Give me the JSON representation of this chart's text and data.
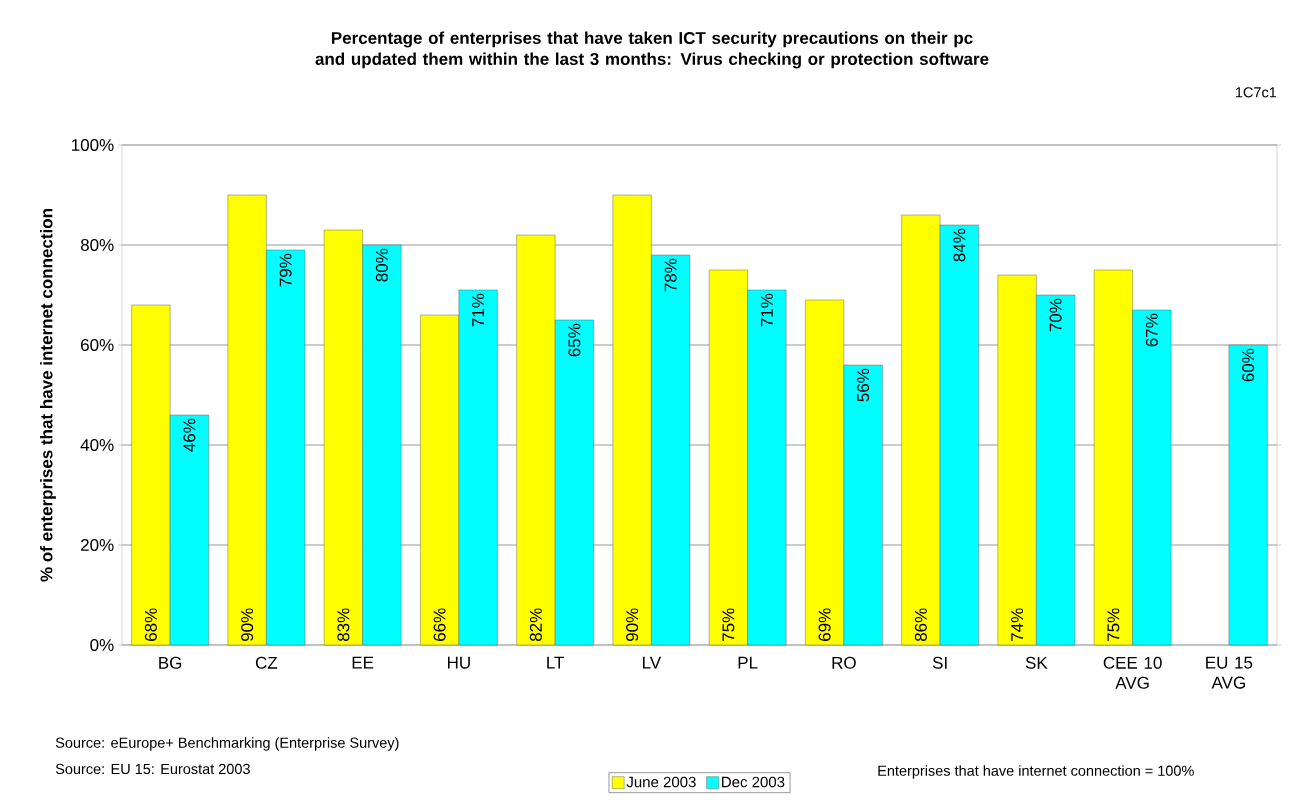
{
  "chart_data": {
    "type": "bar",
    "title": "Percentage of enterprises that have taken ICT security precautions on their pc and updated them within the last 3 months: Virus checking or protection software",
    "ylabel": "% of enterprises that have internet connection",
    "categories": [
      "BG",
      "CZ",
      "EE",
      "HU",
      "LT",
      "LV",
      "PL",
      "RO",
      "SI",
      "SK",
      "CEE 10 AVG",
      "EU 15 AVG"
    ],
    "series": [
      {
        "name": "June 2003",
        "color": "#ffff00",
        "values": [
          68,
          90,
          83,
          66,
          82,
          90,
          75,
          69,
          86,
          74,
          75,
          null
        ],
        "value_labels": [
          "68%",
          "90%",
          "83%",
          "66%",
          "82%",
          "90%",
          "75%",
          "69%",
          "86%",
          "74%",
          "75%",
          null
        ]
      },
      {
        "name": "Dec 2003",
        "color": "#00ffff",
        "values": [
          46,
          79,
          80,
          71,
          65,
          78,
          71,
          56,
          84,
          70,
          67,
          60
        ],
        "value_labels": [
          "46%",
          "79%",
          "80%",
          "71%",
          "65%",
          "78%",
          "71%",
          "56%",
          "84%",
          "70%",
          "67%",
          "60%"
        ]
      }
    ],
    "ylim": [
      0,
      100
    ],
    "yticks": [
      {
        "value": 0,
        "label": "0%"
      },
      {
        "value": 20,
        "label": "20%"
      },
      {
        "value": 40,
        "label": "40%"
      },
      {
        "value": 60,
        "label": "60%"
      },
      {
        "value": 80,
        "label": "80%"
      },
      {
        "value": 100,
        "label": "100%"
      }
    ],
    "grid": "y",
    "legend": "bottom",
    "annotations": [
      "1C7c1",
      "Source: eEurope+ Benchmarking (Enterprise Survey)",
      "Source: EU 15: Eurostat 2003",
      "Enterprises that have internet connection  = 100%"
    ]
  }
}
